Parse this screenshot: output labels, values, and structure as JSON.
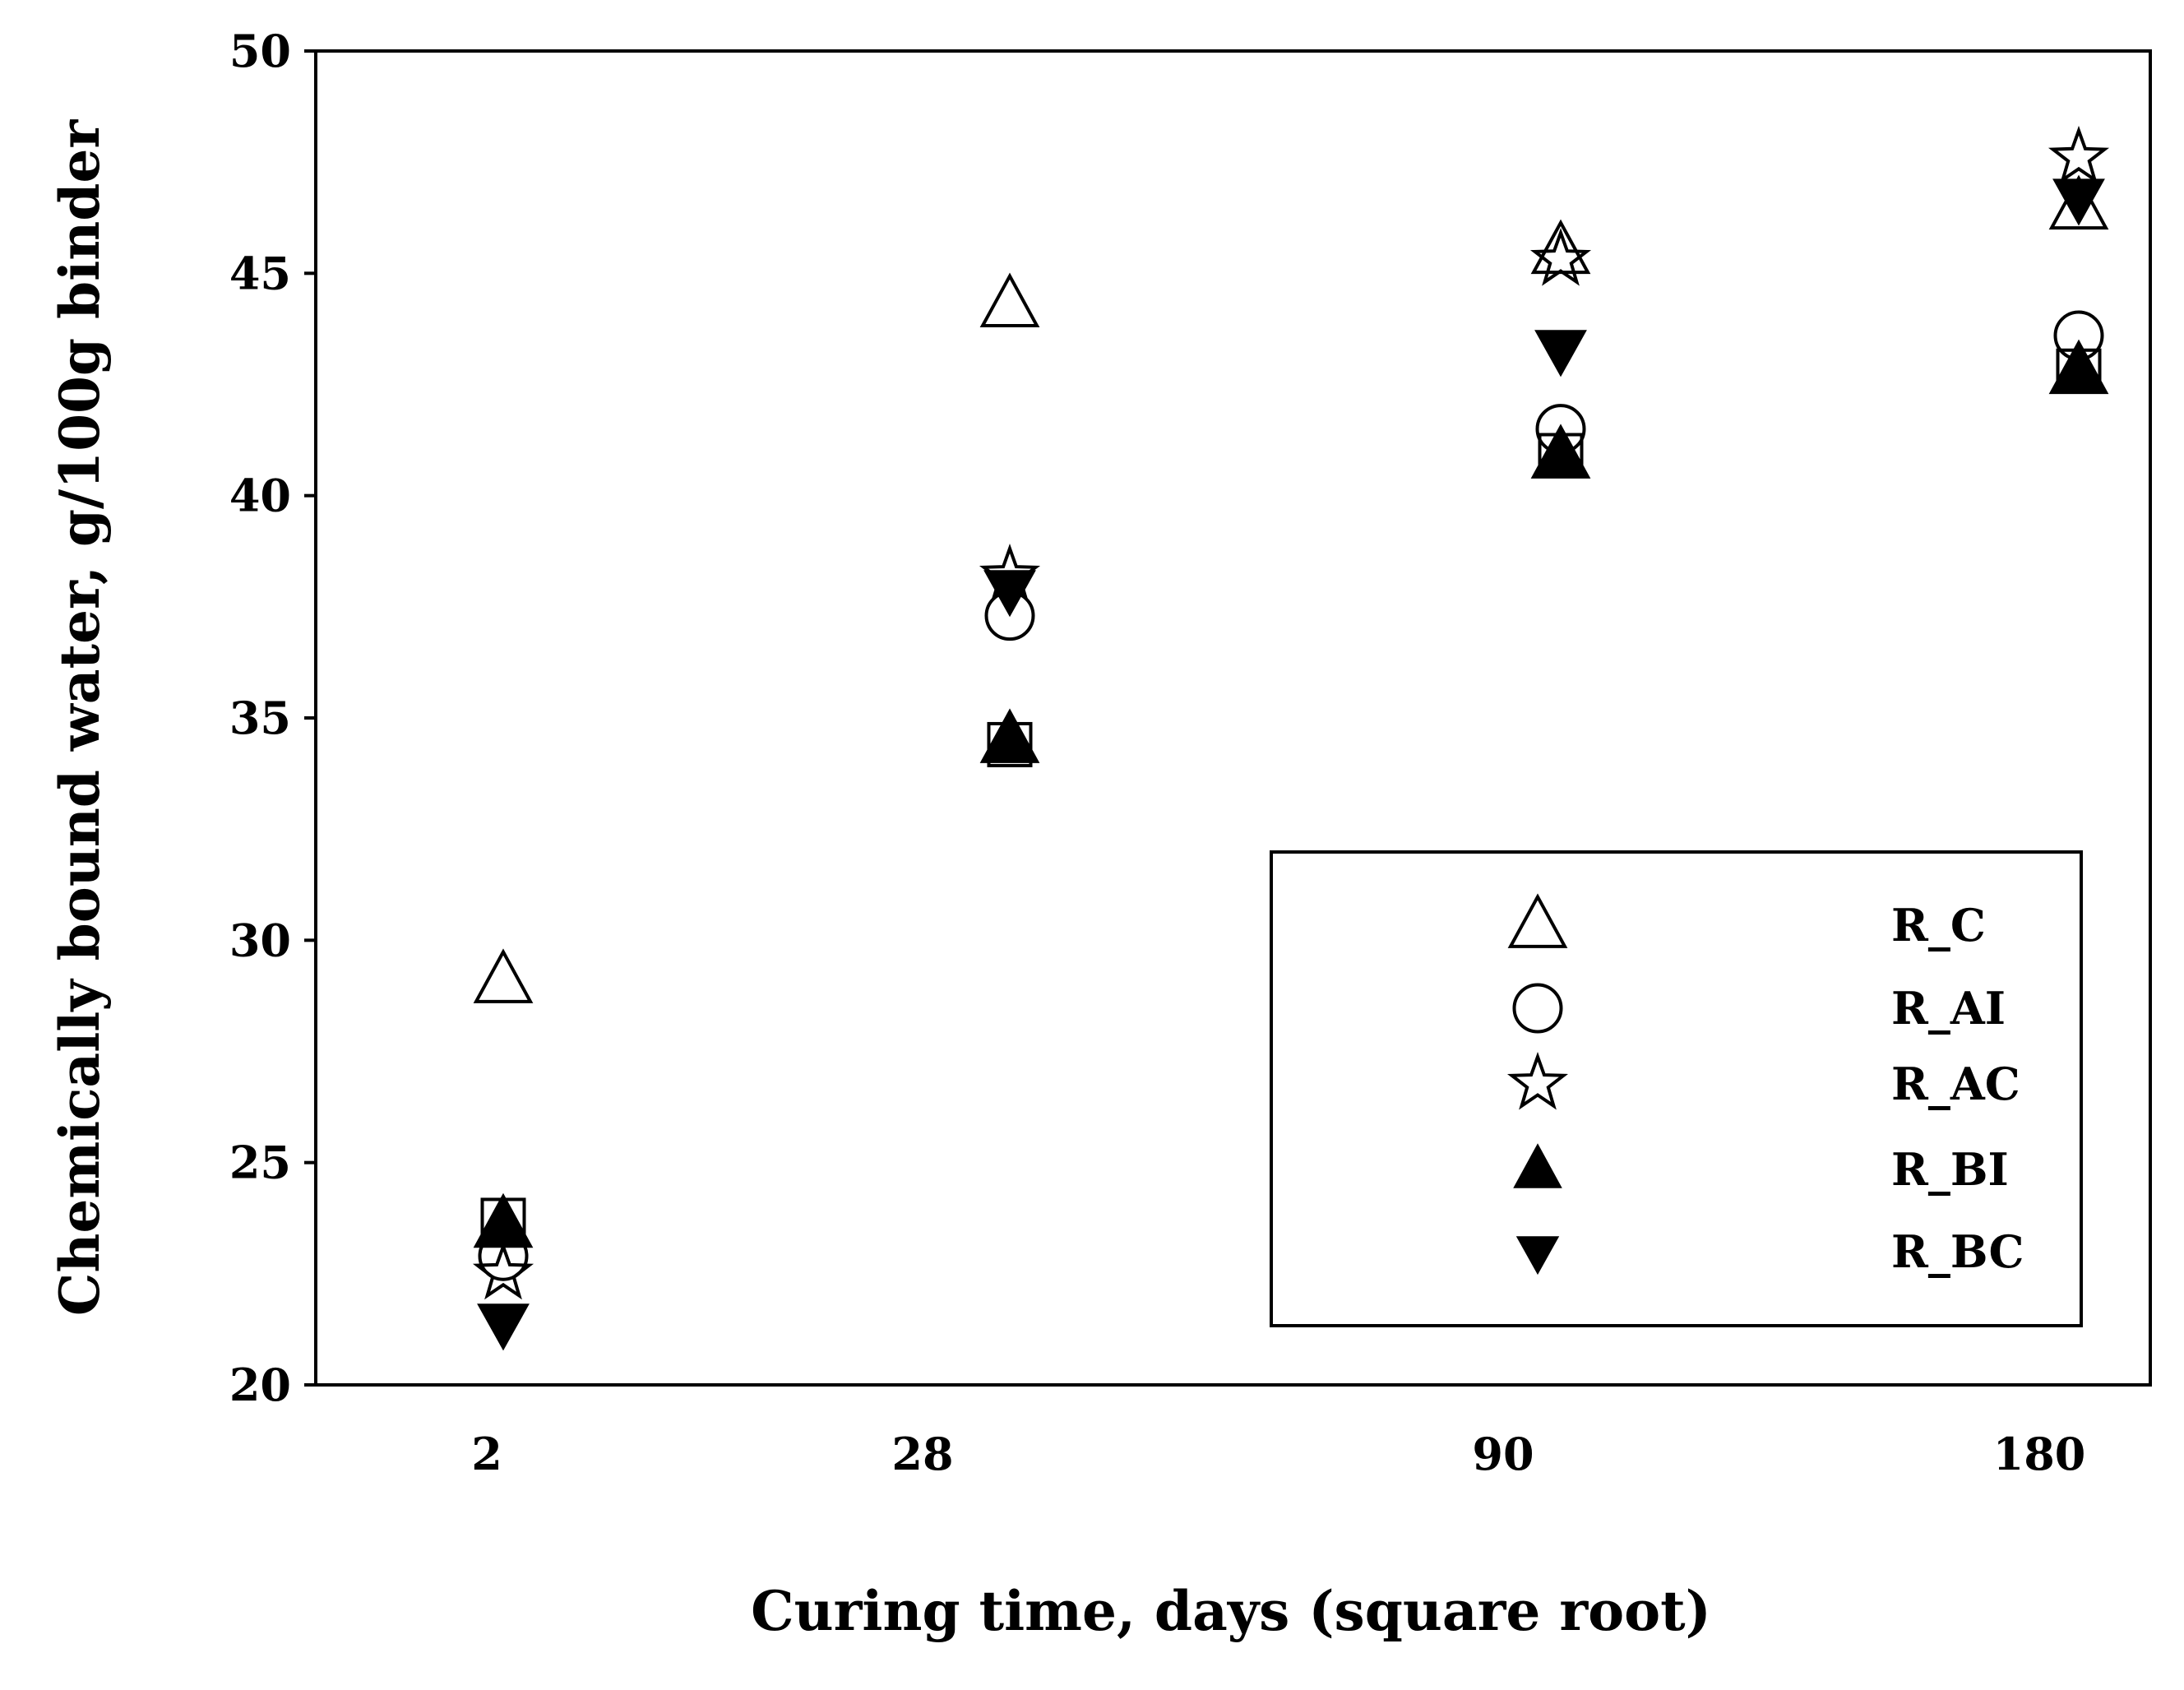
{
  "chart_data": {
    "type": "scatter",
    "title": "",
    "xlabel": "Curing time, days (square root)",
    "ylabel": "Chemically bound water, g/100g binder",
    "x_scale": "sqrt",
    "categories": [
      "2",
      "28",
      "90",
      "180"
    ],
    "x": [
      2,
      28,
      90,
      180
    ],
    "ylim": [
      20,
      50
    ],
    "yticks": [
      "20",
      "25",
      "30",
      "35",
      "40",
      "45",
      "50"
    ],
    "grid": false,
    "legend_position": "bottom-right",
    "series": [
      {
        "name": "R_C",
        "marker": "triangle-up-open",
        "values": [
          29.1,
          44.3,
          45.5,
          46.5
        ]
      },
      {
        "name": "R_AI",
        "marker": "circle-open",
        "values": [
          22.9,
          37.3,
          41.5,
          43.6
        ]
      },
      {
        "name": "R_AC",
        "marker": "star-open",
        "values": [
          22.5,
          38.2,
          45.3,
          47.6
        ]
      },
      {
        "name": "R_BI",
        "marker": "triangle-up-filled",
        "values": [
          23.6,
          34.5,
          40.9,
          42.8
        ]
      },
      {
        "name": "R_BC",
        "marker": "triangle-down-filled",
        "values": [
          21.4,
          37.9,
          43.3,
          46.7
        ]
      }
    ],
    "extra_marker": {
      "marker": "square-open",
      "values": [
        23.7,
        34.4,
        40.9,
        42.8
      ]
    }
  }
}
